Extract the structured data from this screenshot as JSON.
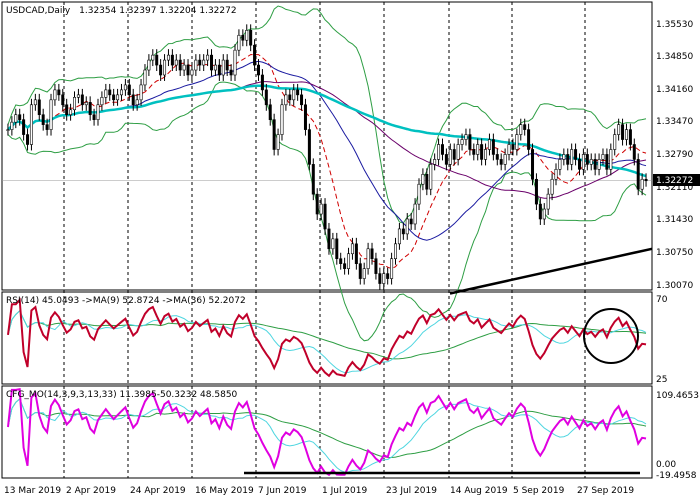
{
  "header": {
    "symbol": "USDCAD,Daily",
    "ohlc": "1.32354 1.32397 1.32204 1.32272"
  },
  "price_axis": {
    "ticks": [
      "1.35530",
      "1.34850",
      "1.34160",
      "1.33470",
      "1.32790",
      "1.32110",
      "1.31430",
      "1.30750",
      "1.30070"
    ],
    "current": "1.32272"
  },
  "rsi_panel": {
    "label": "RSI(14) 45.0493  ->MA(9) 52.8724  ->MA(36) 52.2072",
    "ticks": [
      "70",
      "25"
    ]
  },
  "cfg_panel": {
    "label": "CFG_MO(14,3,9,3,13,33) 11.3985-50.3232 48.5850",
    "ticks": [
      "109.4653",
      "0.00",
      "-19.4958"
    ]
  },
  "date_axis": [
    "13 Mar 2019",
    "2 Apr 2019",
    "24 Apr 2019",
    "16 May 2019",
    "7 Jun 2019",
    "1 Jul 2019",
    "23 Jul 2019",
    "14 Aug 2019",
    "5 Sep 2019",
    "27 Sep 2019"
  ],
  "chart_data": {
    "type": "candlestick",
    "title": "USDCAD,Daily",
    "x_labels": [
      "13 Mar 2019",
      "2 Apr 2019",
      "24 Apr 2019",
      "16 May 2019",
      "7 Jun 2019",
      "1 Jul 2019",
      "23 Jul 2019",
      "14 Aug 2019",
      "5 Sep 2019",
      "27 Sep 2019"
    ],
    "ylim": [
      1.3007,
      1.3587
    ],
    "close_approx": [
      1.333,
      1.3345,
      1.336,
      1.335,
      1.332,
      1.33,
      1.338,
      1.339,
      1.336,
      1.334,
      1.333,
      1.339,
      1.341,
      1.34,
      1.338,
      1.336,
      1.337,
      1.3395,
      1.34,
      1.338,
      1.3385,
      1.336,
      1.335,
      1.338,
      1.3395,
      1.341,
      1.34,
      1.339,
      1.34,
      1.341,
      1.342,
      1.34,
      1.338,
      1.339,
      1.342,
      1.345,
      1.347,
      1.348,
      1.346,
      1.344,
      1.347,
      1.348,
      1.346,
      1.347,
      1.345,
      1.346,
      1.344,
      1.345,
      1.347,
      1.346,
      1.347,
      1.348,
      1.345,
      1.346,
      1.344,
      1.347,
      1.345,
      1.344,
      1.349,
      1.352,
      1.351,
      1.353,
      1.35,
      1.346,
      1.344,
      1.341,
      1.338,
      1.335,
      1.329,
      1.332,
      1.338,
      1.34,
      1.339,
      1.341,
      1.34,
      1.338,
      1.333,
      1.326,
      1.32,
      1.316,
      1.318,
      1.313,
      1.309,
      1.311,
      1.307,
      1.306,
      1.305,
      1.308,
      1.31,
      1.306,
      1.303,
      1.305,
      1.309,
      1.307,
      1.304,
      1.302,
      1.304,
      1.303,
      1.307,
      1.31,
      1.313,
      1.312,
      1.315,
      1.314,
      1.318,
      1.322,
      1.324,
      1.321,
      1.326,
      1.327,
      1.33,
      1.328,
      1.326,
      1.329,
      1.327,
      1.33,
      1.331,
      1.332,
      1.329,
      1.328,
      1.33,
      1.327,
      1.329,
      1.331,
      1.328,
      1.327,
      1.326,
      1.328,
      1.33,
      1.329,
      1.332,
      1.334,
      1.333,
      1.329,
      1.323,
      1.318,
      1.315,
      1.317,
      1.32,
      1.323,
      1.325,
      1.327,
      1.328,
      1.326,
      1.329,
      1.327,
      1.325,
      1.328,
      1.326,
      1.327,
      1.325,
      1.327,
      1.328,
      1.325,
      1.329,
      1.332,
      1.334,
      1.331,
      1.333,
      1.33,
      1.327,
      1.321,
      1.323,
      1.3227
    ],
    "bollinger": {
      "upper_color": "#2e9e44",
      "lower_color": "#2e9e44"
    },
    "moving_averages": [
      {
        "color": "#d00000",
        "style": "dashed"
      },
      {
        "color": "#1a1aa0",
        "style": "solid"
      },
      {
        "color": "#6a006a",
        "style": "solid"
      },
      {
        "color": "#00c0c0",
        "style": "solid"
      }
    ],
    "trendline": {
      "from": [
        "23 Jul 2019",
        1.3
      ],
      "to": [
        "end",
        1.309
      ],
      "color": "#000000"
    },
    "rsi": {
      "value": 45.0493,
      "ma9": 52.8724,
      "ma36": 52.2072,
      "levels": [
        70,
        25
      ],
      "color": "#c0002a"
    },
    "cfg_mo": {
      "values": [
        11.3985,
        -50.3232,
        48.585
      ],
      "range": [
        -19.4958,
        109.4653
      ],
      "main_color": "#e000e0"
    }
  }
}
